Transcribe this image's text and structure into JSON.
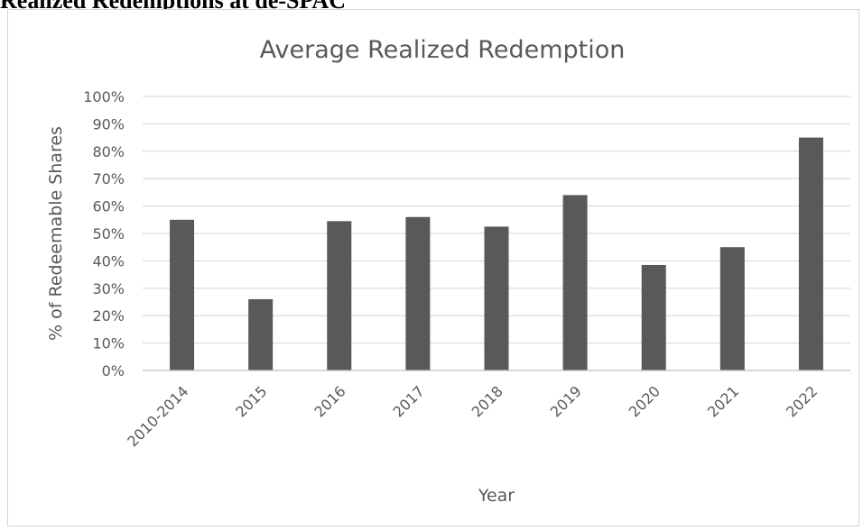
{
  "document": {
    "heading": "Realized Redemptions at de-SPAC"
  },
  "chart_data": {
    "type": "bar",
    "title": "Average Realized Redemption",
    "xlabel": "Year",
    "ylabel": "% of Redeemable Shares",
    "categories": [
      "2010-2014",
      "2015",
      "2016",
      "2017",
      "2018",
      "2019",
      "2020",
      "2021",
      "2022"
    ],
    "values": [
      55,
      26,
      54.5,
      56,
      52.5,
      64,
      38.5,
      45,
      85
    ],
    "ylim": [
      0,
      100
    ],
    "yticks": [
      "0%",
      "10%",
      "20%",
      "30%",
      "40%",
      "50%",
      "60%",
      "70%",
      "80%",
      "90%",
      "100%"
    ],
    "grid": true,
    "legend": "none",
    "colors": {
      "bar": "#595959",
      "grid": "#d4d4d4",
      "text": "#595959"
    }
  }
}
